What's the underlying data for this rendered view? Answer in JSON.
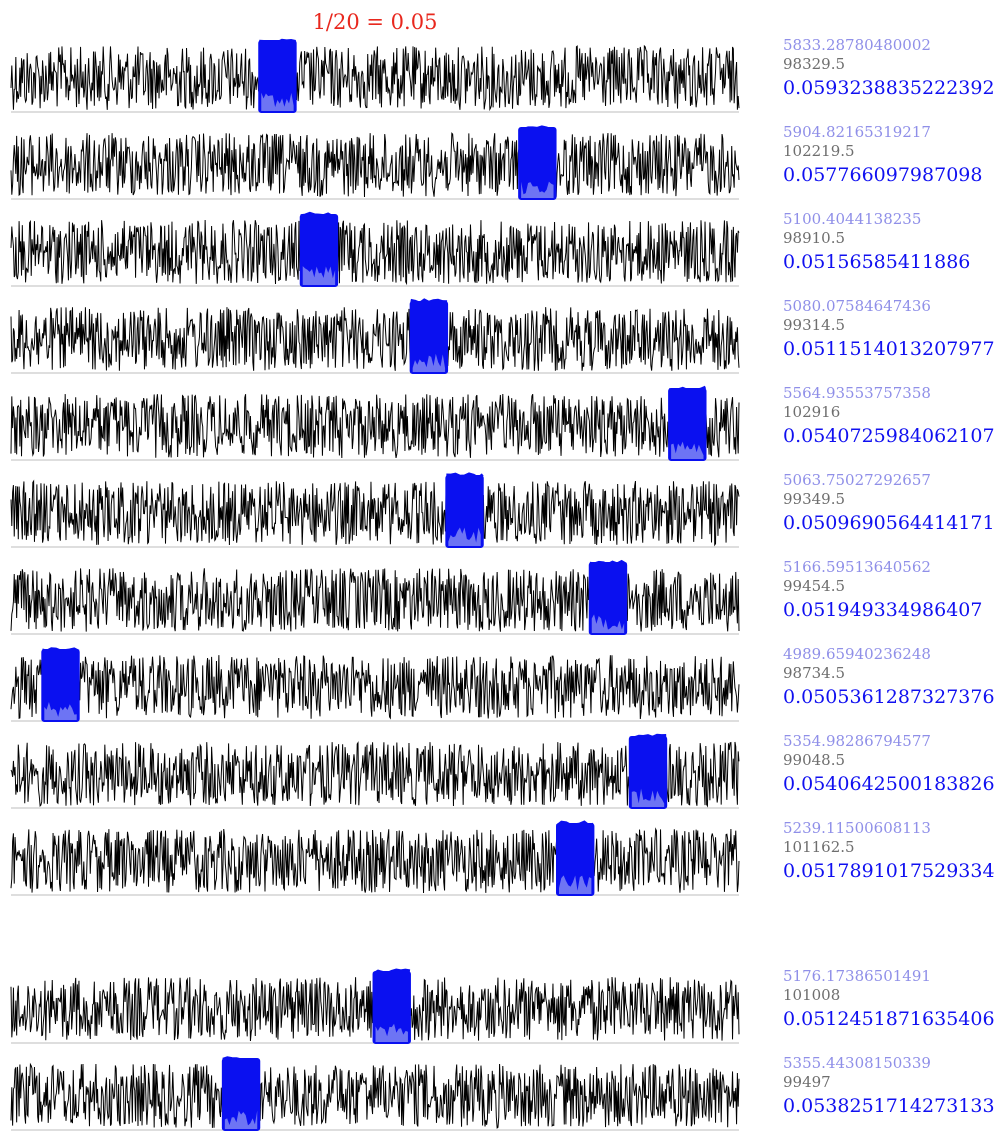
{
  "chart_data": {
    "type": "line",
    "title": "1/20 = 0.05",
    "xlabel": "",
    "ylabel": "",
    "grid": false,
    "legend": "none",
    "colors": {
      "signal": "#000000",
      "window": "#0a10f0",
      "window_inner": "#7f86f4",
      "title": "#e8281e",
      "label_a": "#8f8fe8",
      "label_b": "#6e6e6e",
      "label_c": "#1010f0"
    },
    "x_domain": [
      0,
      1
    ],
    "window_width_fraction": 0.05,
    "panels": [
      {
        "window_start": 0.341,
        "a": "5833.28780480002",
        "b": "98329.5",
        "c": "0.0593238835222392"
      },
      {
        "window_start": 0.698,
        "a": "5904.82165319217",
        "b": "102219.5",
        "c": "0.057766097987098"
      },
      {
        "window_start": 0.398,
        "a": "5100.4044138235",
        "b": "98910.5",
        "c": "0.05156585411886"
      },
      {
        "window_start": 0.549,
        "a": "5080.07584647436",
        "b": "99314.5",
        "c": "0.0511514013207977"
      },
      {
        "window_start": 0.904,
        "a": "5564.93553757358",
        "b": "102916",
        "c": "0.0540725984062107"
      },
      {
        "window_start": 0.598,
        "a": "5063.75027292657",
        "b": "99349.5",
        "c": "0.0509690564414171"
      },
      {
        "window_start": 0.795,
        "a": "5166.59513640562",
        "b": "99454.5",
        "c": "0.051949334986407"
      },
      {
        "window_start": 0.043,
        "a": "4989.65940236248",
        "b": "98734.5",
        "c": "0.0505361287327376"
      },
      {
        "window_start": 0.85,
        "a": "5354.98286794577",
        "b": "99048.5",
        "c": "0.0540642500183826"
      },
      {
        "window_start": 0.75,
        "a": "5239.11500608113",
        "b": "101162.5",
        "c": "0.0517891017529334"
      },
      {
        "window_start": 0.498,
        "a": "5176.17386501491",
        "b": "101008",
        "c": "0.0512451871635406"
      },
      {
        "window_start": 0.291,
        "a": "5355.44308150339",
        "b": "99497",
        "c": "0.0538251714273133"
      }
    ]
  }
}
